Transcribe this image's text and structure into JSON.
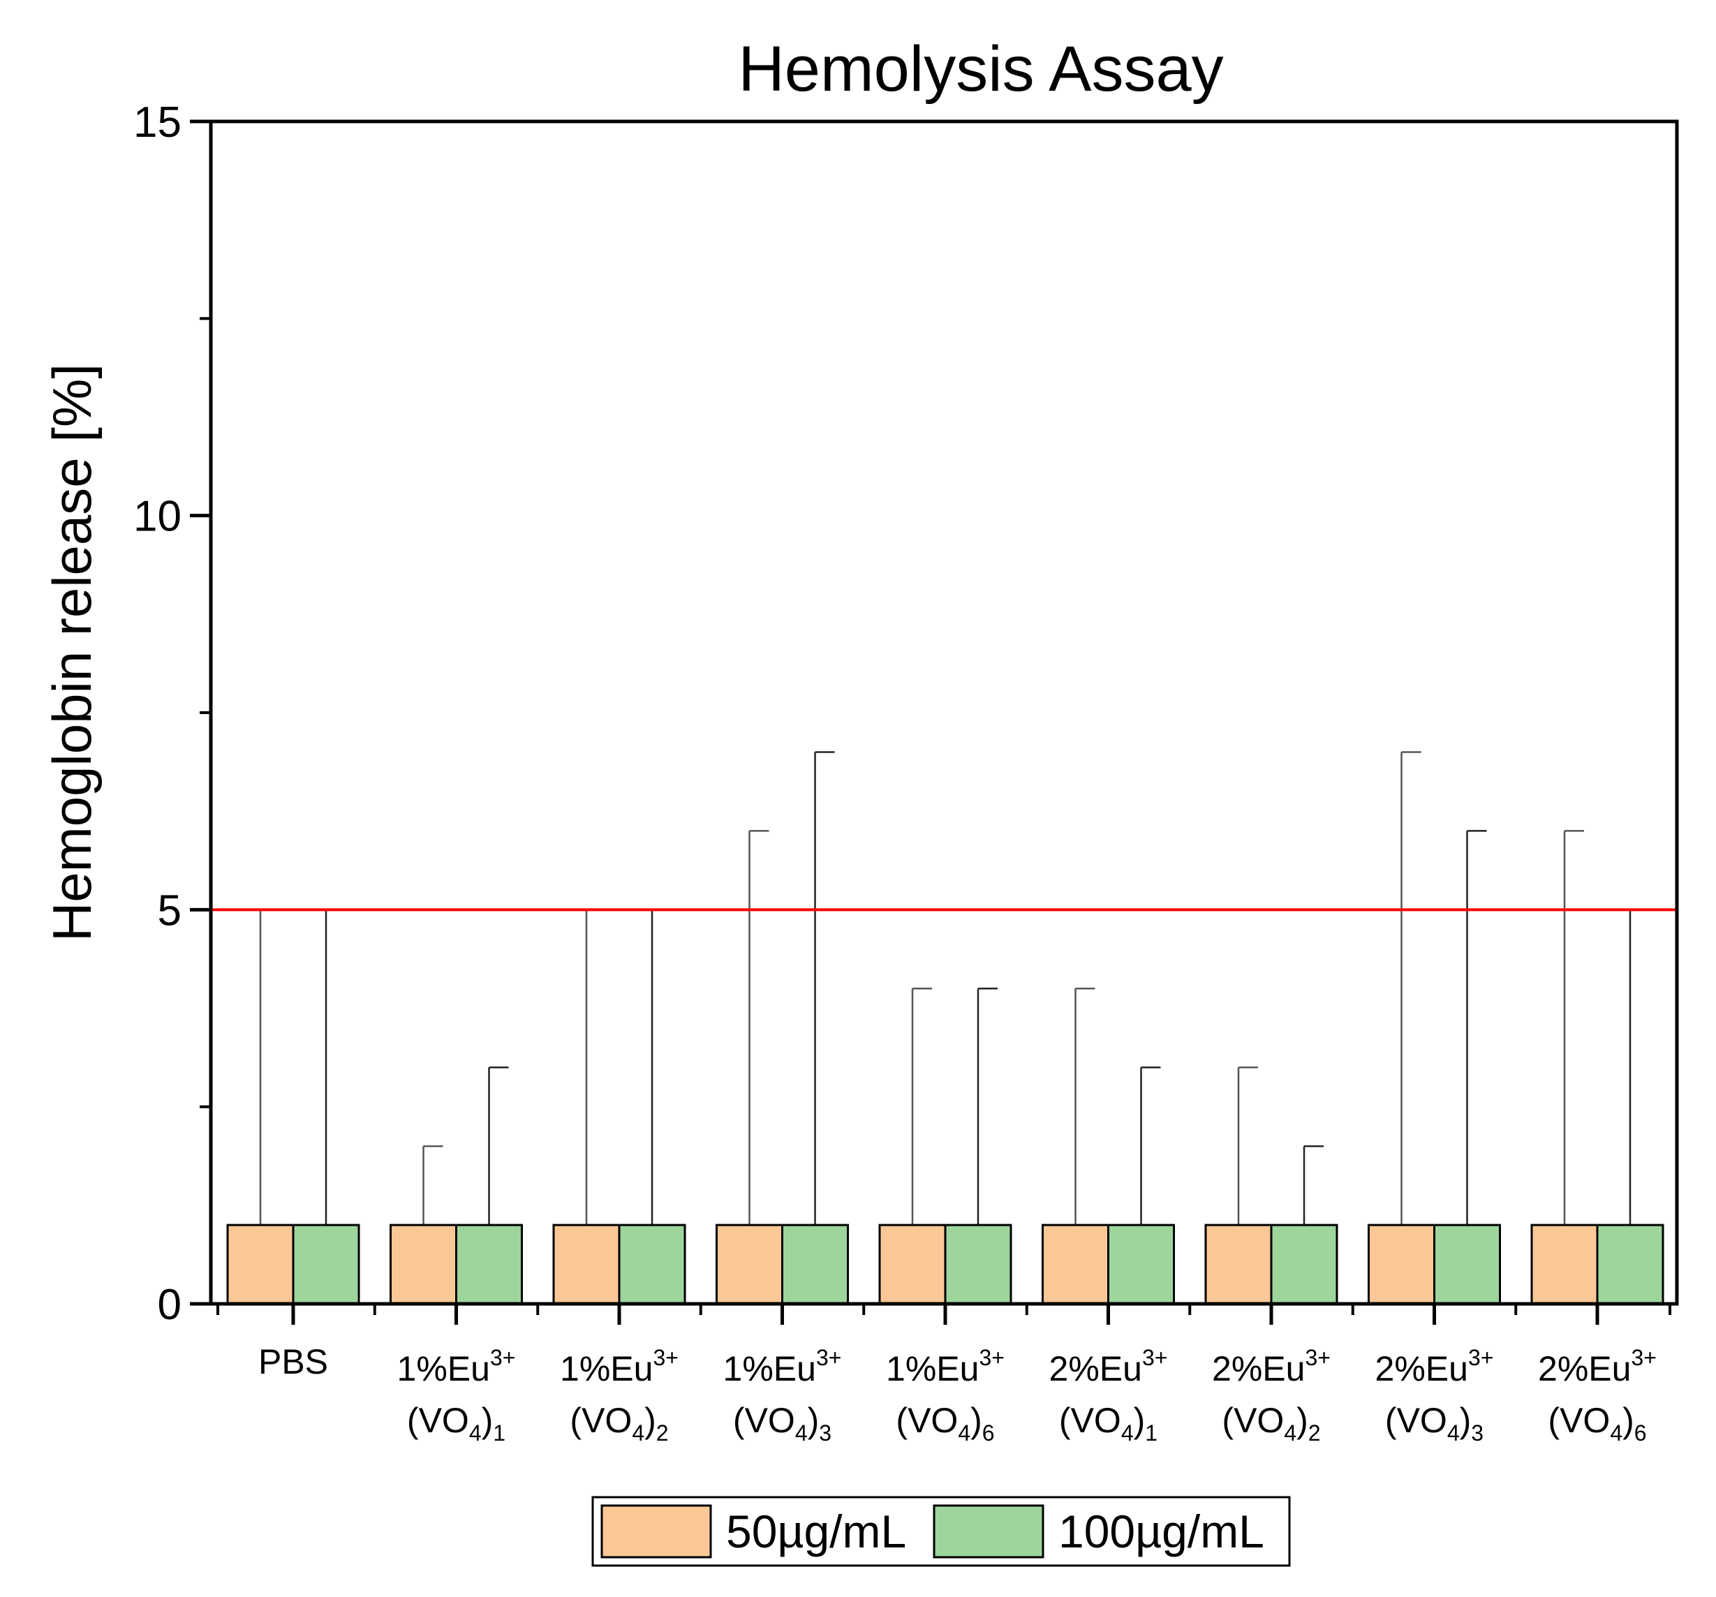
{
  "chart_data": {
    "type": "bar",
    "title": "Hemolysis Assay",
    "ylabel": "Hemoglobin release [%]",
    "xlabel": "",
    "ylim": [
      0,
      15
    ],
    "yticks": [
      "0",
      "5",
      "10",
      "15"
    ],
    "categories": [
      {
        "main": "PBS",
        "sup": "",
        "line2": "",
        "sub": ""
      },
      {
        "main": "1%Eu",
        "sup": "3+",
        "line2": "(VO",
        "sub4": "4",
        "line2end": ")",
        "sub": "1"
      },
      {
        "main": "1%Eu",
        "sup": "3+",
        "line2": "(VO",
        "sub4": "4",
        "line2end": ")",
        "sub": "2"
      },
      {
        "main": "1%Eu",
        "sup": "3+",
        "line2": "(VO",
        "sub4": "4",
        "line2end": ")",
        "sub": "3"
      },
      {
        "main": "1%Eu",
        "sup": "3+",
        "line2": "(VO",
        "sub4": "4",
        "line2end": ")",
        "sub": "6"
      },
      {
        "main": "2%Eu",
        "sup": "3+",
        "line2": "(VO",
        "sub4": "4",
        "line2end": ")",
        "sub": "1"
      },
      {
        "main": "2%Eu",
        "sup": "3+",
        "line2": "(VO",
        "sub4": "4",
        "line2end": ")",
        "sub": "2"
      },
      {
        "main": "2%Eu",
        "sup": "3+",
        "line2": "(VO",
        "sub4": "4",
        "line2end": ")",
        "sub": "3"
      },
      {
        "main": "2%Eu",
        "sup": "3+",
        "line2": "(VO",
        "sub4": "4",
        "line2end": ")",
        "sub": "6"
      }
    ],
    "series": [
      {
        "name": "50µg/mL",
        "color": "#F9C896",
        "values": [
          1,
          1,
          1,
          1,
          1,
          1,
          1,
          1,
          1
        ],
        "error_top": [
          5,
          2,
          5,
          6,
          4,
          4,
          3,
          7,
          6
        ]
      },
      {
        "name": "100µg/mL",
        "color": "#9DD59D",
        "values": [
          1,
          1,
          1,
          1,
          1,
          1,
          1,
          1,
          1
        ],
        "error_top": [
          5,
          3,
          5,
          7,
          4,
          3,
          2,
          6,
          5
        ]
      }
    ],
    "reference_line": {
      "value": 5,
      "color": "#FF0000"
    },
    "legend": {
      "position": "bottom-center",
      "labels": [
        "50µg/mL",
        "100µg/mL"
      ]
    }
  }
}
